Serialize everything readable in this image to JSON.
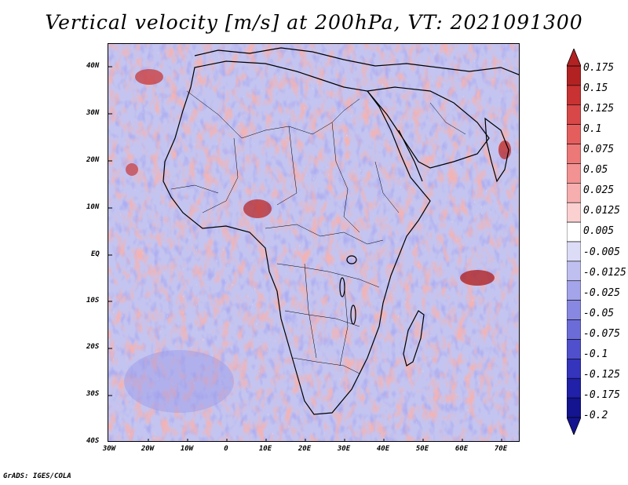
{
  "title": "Vertical velocity [m/s] at 200hPa, VT: 2021091300",
  "credit": "GrADS: IGES/COLA",
  "lat_labels": [
    "40N",
    "30N",
    "20N",
    "10N",
    "EQ",
    "10S",
    "20S",
    "30S",
    "40S"
  ],
  "lon_labels": [
    "30W",
    "20W",
    "10W",
    "0",
    "10E",
    "20E",
    "30E",
    "40E",
    "50E",
    "60E",
    "70E"
  ],
  "colorbar": {
    "labels": [
      "0.175",
      "0.15",
      "0.125",
      "0.1",
      "0.075",
      "0.05",
      "0.025",
      "0.0125",
      "0.005",
      "-0.005",
      "-0.0125",
      "-0.025",
      "-0.05",
      "-0.075",
      "-0.1",
      "-0.125",
      "-0.175",
      "-0.2"
    ],
    "colors": [
      "#b22222",
      "#c83232",
      "#d84848",
      "#e45e5e",
      "#ec7878",
      "#f29292",
      "#f6aeae",
      "#fad0d0",
      "#ffffff",
      "#dcdcf6",
      "#c0c0f0",
      "#a4a4ea",
      "#8888e2",
      "#6c6cd8",
      "#5050cc",
      "#3434bc",
      "#2020a8",
      "#141490"
    ]
  },
  "colors": {
    "background": "#ffffff",
    "map_base": "#c8c8f2",
    "positive": "#e87070",
    "negative": "#6e6ee0",
    "coast": "#000000"
  }
}
